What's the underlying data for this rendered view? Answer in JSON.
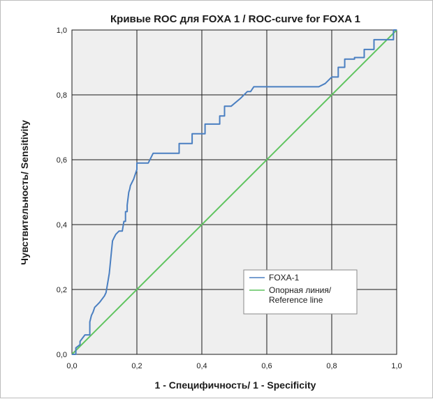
{
  "chart_data": {
    "type": "line",
    "title": "Кривые ROC для FOXA 1 / ROC-curve for FOXA 1",
    "xlabel": "1 - Специфичность/ 1 - Specificity",
    "ylabel": "Чувствительность/ Sensitivity",
    "xlim": [
      0,
      1
    ],
    "ylim": [
      0,
      1
    ],
    "xticks": [
      "0,0",
      "0,2",
      "0,4",
      "0,6",
      "0,8",
      "1,0"
    ],
    "yticks": [
      "0,0",
      "0,2",
      "0,4",
      "0,6",
      "0,8",
      "1,0"
    ],
    "grid": true,
    "legend_position": "lower-right",
    "series": [
      {
        "name": "FOXA-1",
        "color": "#4a7fc1",
        "x": [
          0.0,
          0.012,
          0.012,
          0.025,
          0.025,
          0.04,
          0.055,
          0.055,
          0.06,
          0.065,
          0.07,
          0.075,
          0.085,
          0.1,
          0.105,
          0.11,
          0.115,
          0.12,
          0.125,
          0.13,
          0.135,
          0.145,
          0.155,
          0.16,
          0.165,
          0.165,
          0.17,
          0.17,
          0.175,
          0.178,
          0.18,
          0.185,
          0.19,
          0.2,
          0.2,
          0.215,
          0.235,
          0.25,
          0.255,
          0.3,
          0.33,
          0.33,
          0.37,
          0.37,
          0.41,
          0.41,
          0.455,
          0.455,
          0.47,
          0.47,
          0.49,
          0.49,
          0.52,
          0.54,
          0.55,
          0.56,
          0.76,
          0.78,
          0.8,
          0.8,
          0.82,
          0.82,
          0.84,
          0.84,
          0.87,
          0.87,
          0.9,
          0.9,
          0.93,
          0.93,
          0.99,
          0.99,
          1.0
        ],
        "y": [
          0.0,
          0.0,
          0.02,
          0.03,
          0.04,
          0.06,
          0.06,
          0.1,
          0.12,
          0.13,
          0.145,
          0.15,
          0.16,
          0.18,
          0.19,
          0.22,
          0.25,
          0.3,
          0.35,
          0.36,
          0.37,
          0.38,
          0.38,
          0.41,
          0.41,
          0.44,
          0.44,
          0.46,
          0.5,
          0.51,
          0.52,
          0.53,
          0.54,
          0.57,
          0.59,
          0.59,
          0.59,
          0.62,
          0.62,
          0.62,
          0.62,
          0.65,
          0.65,
          0.68,
          0.68,
          0.71,
          0.71,
          0.735,
          0.735,
          0.765,
          0.765,
          0.765,
          0.79,
          0.81,
          0.81,
          0.825,
          0.825,
          0.835,
          0.855,
          0.855,
          0.855,
          0.885,
          0.885,
          0.91,
          0.91,
          0.915,
          0.915,
          0.94,
          0.94,
          0.97,
          0.97,
          1.0,
          1.0
        ]
      },
      {
        "name": "Опорная линия/ Reference line",
        "color": "#5fc45f",
        "x": [
          0,
          1
        ],
        "y": [
          0,
          1
        ]
      }
    ],
    "legend": {
      "entries": [
        {
          "label_lines": [
            "FOXA-1"
          ],
          "color": "#4a7fc1"
        },
        {
          "label_lines": [
            "Опорная линия/",
            "Reference line"
          ],
          "color": "#5fc45f"
        }
      ]
    },
    "colors": {
      "plot_background": "#efefef",
      "grid": "#1a1a1a"
    }
  }
}
